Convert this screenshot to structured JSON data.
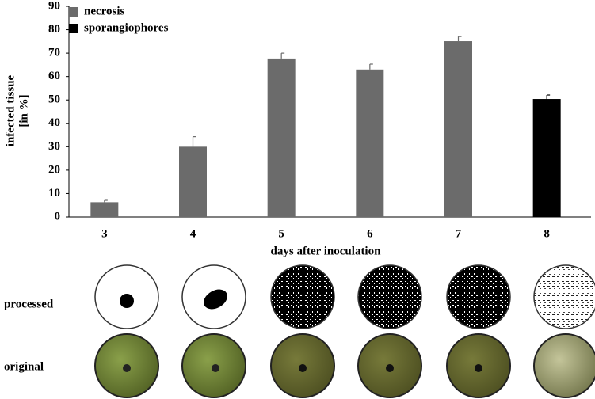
{
  "chart_data": {
    "type": "bar",
    "ylabel": [
      "infected tissue",
      "[in %]"
    ],
    "xlabel": "days after inoculation",
    "categories": [
      "3",
      "4",
      "5",
      "6",
      "7",
      "8"
    ],
    "series": [
      {
        "name": "necrosis",
        "color": "#6b6b6b",
        "values": [
          6.3,
          30,
          67.7,
          63,
          75.1,
          null
        ],
        "errors": [
          0.8,
          4.3,
          2.3,
          2.3,
          2,
          null
        ]
      },
      {
        "name": "sporangiophores",
        "color": "#000000",
        "values": [
          null,
          null,
          null,
          null,
          null,
          50.4
        ],
        "errors": [
          null,
          null,
          null,
          null,
          null,
          1.7
        ]
      }
    ],
    "ylim": [
      0,
      90
    ],
    "yticks": [
      0,
      10,
      20,
      30,
      40,
      50,
      60,
      70,
      80,
      90
    ],
    "legend": "upper left",
    "panel_labels": [
      "processed",
      "original"
    ]
  }
}
